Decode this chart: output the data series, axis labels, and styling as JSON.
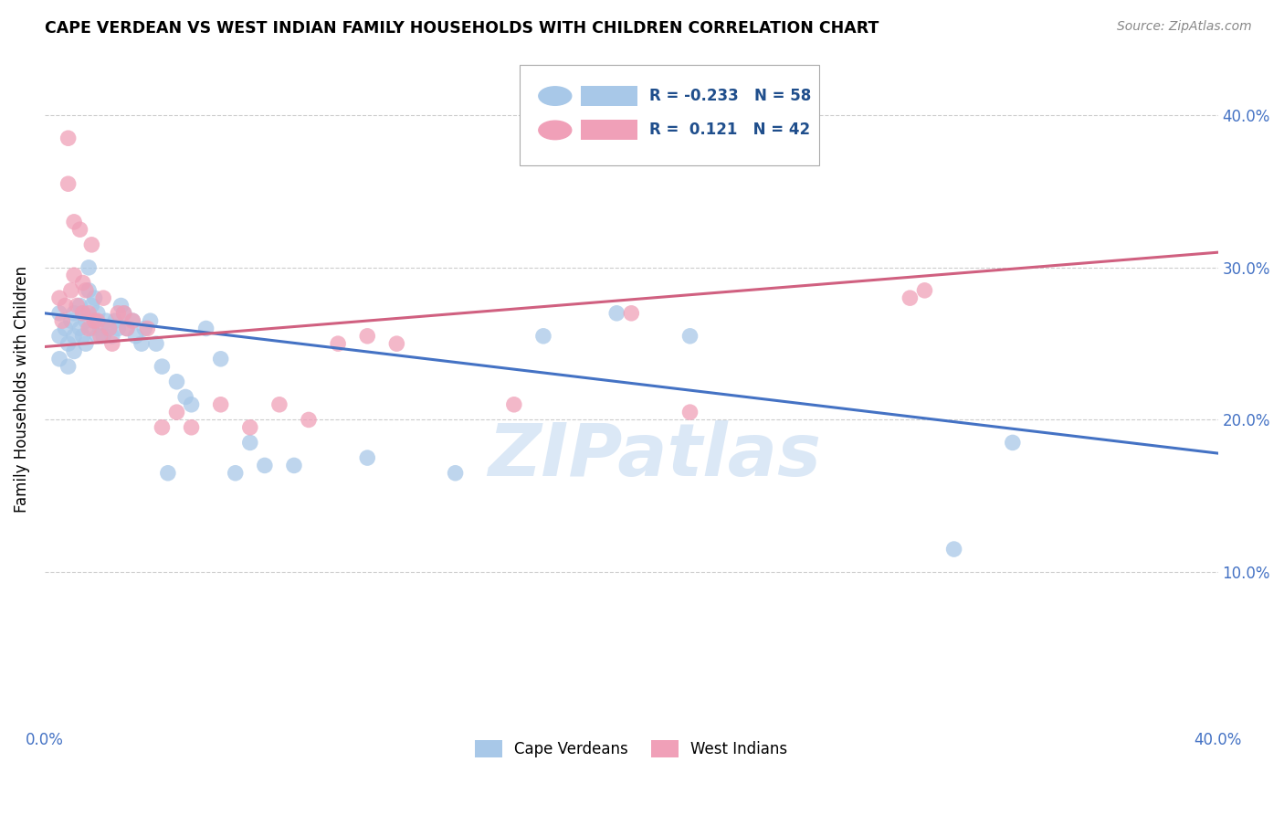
{
  "title": "CAPE VERDEAN VS WEST INDIAN FAMILY HOUSEHOLDS WITH CHILDREN CORRELATION CHART",
  "source": "Source: ZipAtlas.com",
  "ylabel": "Family Households with Children",
  "watermark": "ZIPatlas",
  "xlim": [
    0.0,
    0.4
  ],
  "ylim": [
    0.0,
    0.44
  ],
  "xticks": [
    0.0,
    0.05,
    0.1,
    0.15,
    0.2,
    0.25,
    0.3,
    0.35,
    0.4
  ],
  "xticklabels": [
    "0.0%",
    "",
    "",
    "",
    "",
    "",
    "",
    "",
    "40.0%"
  ],
  "yticks": [
    0.0,
    0.1,
    0.2,
    0.3,
    0.4
  ],
  "yticklabels": [
    "",
    "10.0%",
    "20.0%",
    "30.0%",
    "40.0%"
  ],
  "blue_color": "#A8C8E8",
  "pink_color": "#F0A0B8",
  "blue_line_color": "#4472C4",
  "pink_line_color": "#D06080",
  "legend_blue_label": "Cape Verdeans",
  "legend_pink_label": "West Indians",
  "R_blue": -0.233,
  "N_blue": 58,
  "R_pink": 0.121,
  "N_pink": 42,
  "blue_intercept": 0.27,
  "blue_slope": -0.23,
  "pink_intercept": 0.248,
  "pink_slope": 0.155,
  "blue_x": [
    0.005,
    0.005,
    0.005,
    0.007,
    0.008,
    0.008,
    0.009,
    0.01,
    0.01,
    0.01,
    0.012,
    0.012,
    0.013,
    0.013,
    0.014,
    0.014,
    0.015,
    0.015,
    0.016,
    0.016,
    0.017,
    0.017,
    0.018,
    0.018,
    0.019,
    0.02,
    0.021,
    0.022,
    0.023,
    0.024,
    0.025,
    0.026,
    0.027,
    0.028,
    0.03,
    0.031,
    0.033,
    0.034,
    0.036,
    0.038,
    0.04,
    0.042,
    0.045,
    0.048,
    0.05,
    0.055,
    0.06,
    0.065,
    0.07,
    0.075,
    0.085,
    0.11,
    0.14,
    0.17,
    0.195,
    0.22,
    0.31,
    0.33
  ],
  "blue_y": [
    0.27,
    0.255,
    0.24,
    0.26,
    0.25,
    0.235,
    0.265,
    0.27,
    0.255,
    0.245,
    0.275,
    0.26,
    0.27,
    0.255,
    0.265,
    0.25,
    0.3,
    0.285,
    0.275,
    0.26,
    0.28,
    0.265,
    0.27,
    0.255,
    0.26,
    0.255,
    0.265,
    0.26,
    0.255,
    0.265,
    0.26,
    0.275,
    0.27,
    0.26,
    0.265,
    0.255,
    0.25,
    0.26,
    0.265,
    0.25,
    0.235,
    0.165,
    0.225,
    0.215,
    0.21,
    0.26,
    0.24,
    0.165,
    0.185,
    0.17,
    0.17,
    0.175,
    0.165,
    0.255,
    0.27,
    0.255,
    0.115,
    0.185
  ],
  "pink_x": [
    0.005,
    0.006,
    0.007,
    0.008,
    0.008,
    0.009,
    0.01,
    0.01,
    0.011,
    0.012,
    0.013,
    0.013,
    0.014,
    0.015,
    0.015,
    0.016,
    0.017,
    0.018,
    0.019,
    0.02,
    0.022,
    0.023,
    0.025,
    0.027,
    0.028,
    0.03,
    0.035,
    0.04,
    0.045,
    0.05,
    0.06,
    0.07,
    0.08,
    0.09,
    0.1,
    0.11,
    0.12,
    0.16,
    0.2,
    0.22,
    0.295,
    0.3
  ],
  "pink_y": [
    0.28,
    0.265,
    0.275,
    0.385,
    0.355,
    0.285,
    0.33,
    0.295,
    0.275,
    0.325,
    0.29,
    0.27,
    0.285,
    0.27,
    0.26,
    0.315,
    0.265,
    0.265,
    0.255,
    0.28,
    0.26,
    0.25,
    0.27,
    0.27,
    0.26,
    0.265,
    0.26,
    0.195,
    0.205,
    0.195,
    0.21,
    0.195,
    0.21,
    0.2,
    0.25,
    0.255,
    0.25,
    0.21,
    0.27,
    0.205,
    0.28,
    0.285
  ]
}
